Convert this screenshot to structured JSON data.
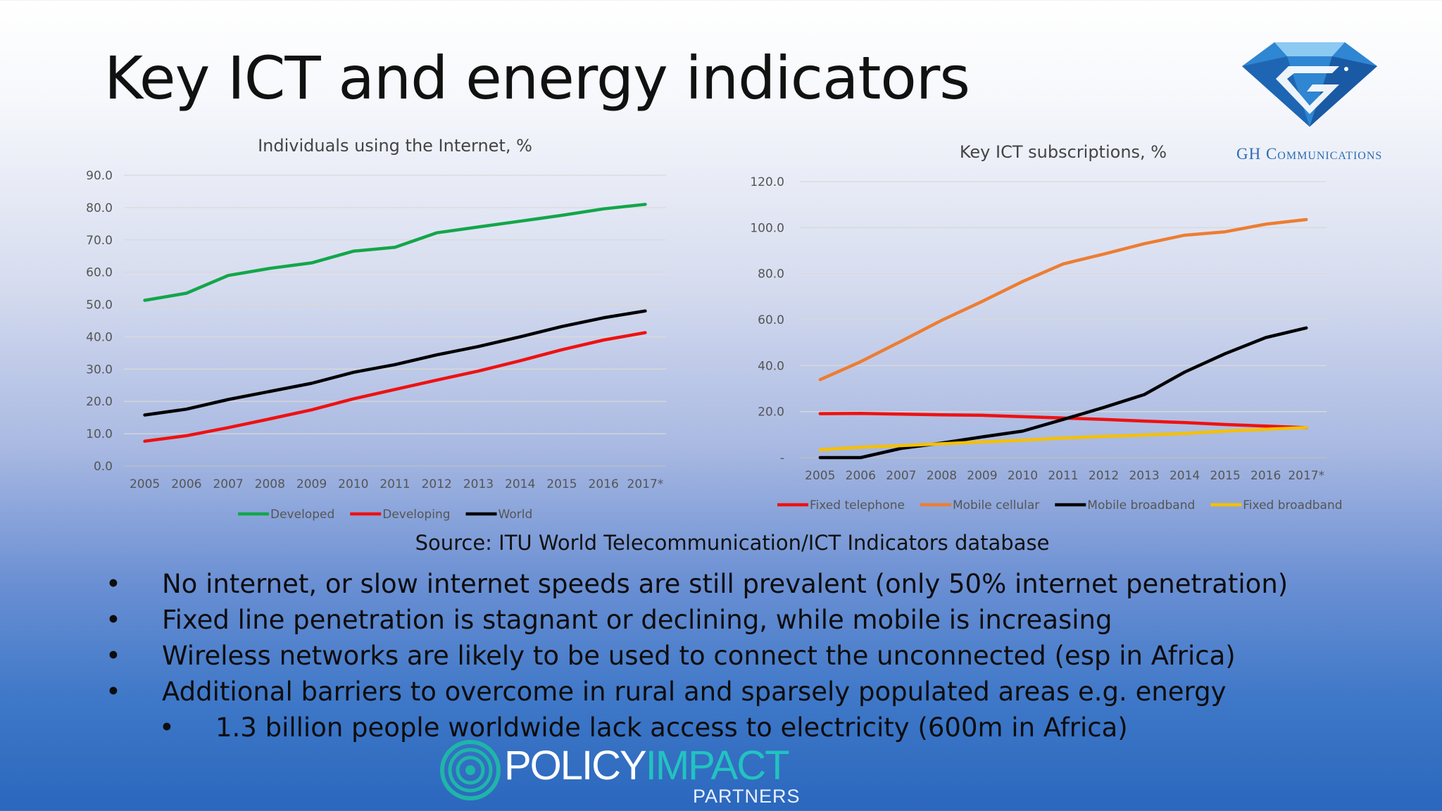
{
  "slide": {
    "title": "Key ICT and energy indicators",
    "source": "Source: ITU World Telecommunication/ICT Indicators database",
    "bullets": [
      "No internet, or slow internet speeds are still prevalent (only 50% internet penetration)",
      "Fixed line penetration is stagnant or declining, while mobile is increasing",
      "Wireless networks are likely to be used to connect the unconnected (esp in Africa)",
      "Additional barriers to overcome in rural and sparsely populated areas e.g. energy"
    ],
    "sub_bullet": "1.3 billion people worldwide lack access to electricity (600m in Africa)"
  },
  "logo": {
    "name": "GH Communications",
    "icon": "diamond-g-icon",
    "color": "#2a6db4"
  },
  "footer_logo": {
    "word1": "POLICY",
    "word2": "IMPACT",
    "sub": "PARTNERS",
    "icon": "ring-icon"
  },
  "colors": {
    "developed": "#13a64a",
    "developing": "#ee1111",
    "world": "#000000",
    "fixed_telephone": "#ee1111",
    "mobile_cellular": "#ed7d31",
    "mobile_broadband": "#000000",
    "fixed_broadband": "#f5c000"
  },
  "chart_data": [
    {
      "type": "line",
      "title": "Individuals using the Internet, %",
      "categories": [
        "2005",
        "2006",
        "2007",
        "2008",
        "2009",
        "2010",
        "2011",
        "2012",
        "2013",
        "2014",
        "2015",
        "2016",
        "2017*"
      ],
      "ylim": [
        0,
        90
      ],
      "yticks": [
        "0.0",
        "10.0",
        "20.0",
        "30.0",
        "40.0",
        "50.0",
        "60.0",
        "70.0",
        "80.0",
        "90.0"
      ],
      "grid": true,
      "legend": "bottom",
      "series": [
        {
          "name": "Developed",
          "color": "#13a64a",
          "values": [
            51.3,
            53.5,
            59.0,
            61.2,
            62.9,
            66.5,
            67.7,
            72.2,
            74.0,
            75.8,
            77.6,
            79.6,
            81.0
          ]
        },
        {
          "name": "Developing",
          "color": "#ee1111",
          "values": [
            7.7,
            9.4,
            11.9,
            14.6,
            17.4,
            20.8,
            23.7,
            26.6,
            29.4,
            32.6,
            36.0,
            39.0,
            41.3
          ]
        },
        {
          "name": "World",
          "color": "#000000",
          "values": [
            15.8,
            17.6,
            20.6,
            23.1,
            25.6,
            29.0,
            31.4,
            34.4,
            37.0,
            40.0,
            43.2,
            45.9,
            48.0
          ]
        }
      ]
    },
    {
      "type": "line",
      "title": "Key ICT subscriptions, %",
      "categories": [
        "2005",
        "2006",
        "2007",
        "2008",
        "2009",
        "2010",
        "2011",
        "2012",
        "2013",
        "2014",
        "2015",
        "2016",
        "2017*"
      ],
      "ylim": [
        0,
        120
      ],
      "yticks": [
        "-",
        "20.0",
        "40.0",
        "60.0",
        "80.0",
        "100.0",
        "120.0"
      ],
      "grid": true,
      "legend": "bottom",
      "series": [
        {
          "name": "Fixed telephone",
          "color": "#ee1111",
          "values": [
            19.1,
            19.2,
            18.9,
            18.6,
            18.4,
            17.8,
            17.2,
            16.6,
            15.9,
            15.2,
            14.4,
            13.7,
            13.0
          ]
        },
        {
          "name": "Mobile cellular",
          "color": "#ed7d31",
          "values": [
            33.9,
            41.7,
            50.6,
            59.7,
            67.9,
            76.6,
            84.2,
            88.5,
            93.0,
            96.7,
            98.2,
            101.5,
            103.5
          ]
        },
        {
          "name": "Mobile broadband",
          "color": "#000000",
          "values": [
            0.0,
            0.0,
            4.0,
            6.3,
            9.0,
            11.5,
            16.6,
            21.8,
            27.4,
            37.2,
            45.2,
            52.2,
            56.4
          ]
        },
        {
          "name": "Fixed broadband",
          "color": "#f5c000",
          "values": [
            3.4,
            4.5,
            5.2,
            6.0,
            6.8,
            7.6,
            8.5,
            9.2,
            9.8,
            10.5,
            11.5,
            12.3,
            13.1
          ]
        }
      ]
    }
  ]
}
